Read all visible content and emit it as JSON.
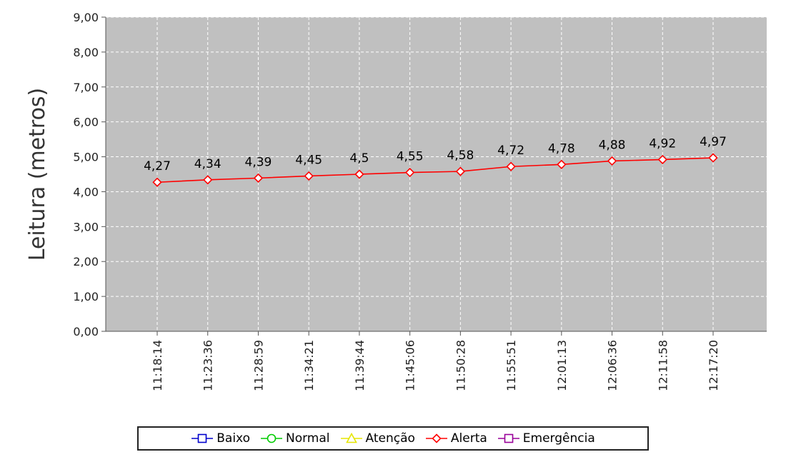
{
  "chart_data": {
    "type": "line",
    "title": "",
    "xlabel": "",
    "ylabel": "Leitura (metros)",
    "ylim": [
      0,
      9
    ],
    "yticks": [
      "0,00",
      "1,00",
      "2,00",
      "3,00",
      "4,00",
      "5,00",
      "6,00",
      "7,00",
      "8,00",
      "9,00"
    ],
    "categories": [
      "11:18:14",
      "11:23:36",
      "11:28:59",
      "11:34:21",
      "11:39:44",
      "11:45:06",
      "11:50:28",
      "11:55:51",
      "12:01:13",
      "12:06:36",
      "12:11:58",
      "12:17:20"
    ],
    "series": [
      {
        "name": "Alerta",
        "color": "#ff0000",
        "values": [
          4.27,
          4.34,
          4.39,
          4.45,
          4.5,
          4.55,
          4.58,
          4.72,
          4.78,
          4.88,
          4.92,
          4.97
        ],
        "labels": [
          "4,27",
          "4,34",
          "4,39",
          "4,45",
          "4,5",
          "4,55",
          "4,58",
          "4,72",
          "4,78",
          "4,88",
          "4,92",
          "4,97"
        ]
      }
    ],
    "grid": true,
    "plot_background": "#c0c0c0",
    "legend_position": "bottom",
    "legend": [
      {
        "label": "Baixo",
        "color": "#0000cc",
        "marker": "square"
      },
      {
        "label": "Normal",
        "color": "#00cc00",
        "marker": "circle"
      },
      {
        "label": "Atenção",
        "color": "#e6e600",
        "marker": "triangle"
      },
      {
        "label": "Alerta",
        "color": "#ff0000",
        "marker": "diamond"
      },
      {
        "label": "Emergência",
        "color": "#990099",
        "marker": "square"
      }
    ]
  }
}
